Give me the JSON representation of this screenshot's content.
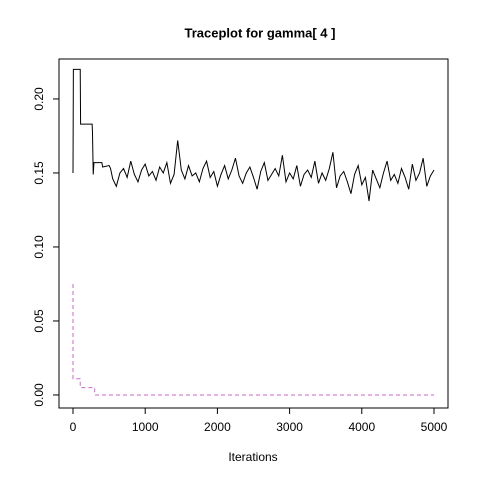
{
  "chart_data": {
    "type": "line",
    "title": "Traceplot for gamma[ 4 ]",
    "x_label": "Iterations",
    "xlim": [
      -194,
      5194
    ],
    "ylim": [
      -0.0088,
      0.227
    ],
    "xticks": [
      0,
      1000,
      2000,
      3000,
      4000,
      5000
    ],
    "yticks": [
      {
        "value": 0,
        "label": "0.00"
      },
      0.05,
      {
        "value": 0.1,
        "label": "0.10"
      },
      0.15,
      {
        "value": 0.2,
        "label": "0.20"
      }
    ],
    "series": [
      {
        "color": "#000000",
        "linestyle": "solid",
        "x": [
          0,
          5,
          100,
          105,
          265,
          270,
          280,
          290,
          400,
          410,
          500,
          520,
          550,
          600,
          650,
          700,
          750,
          800,
          850,
          900,
          950,
          1000,
          1050,
          1100,
          1150,
          1200,
          1250,
          1300,
          1350,
          1400,
          1450,
          1500,
          1550,
          1600,
          1650,
          1700,
          1750,
          1800,
          1850,
          1900,
          1950,
          2000,
          2050,
          2100,
          2150,
          2200,
          2250,
          2300,
          2350,
          2400,
          2450,
          2500,
          2550,
          2600,
          2650,
          2700,
          2750,
          2800,
          2850,
          2900,
          2950,
          3000,
          3050,
          3100,
          3150,
          3200,
          3250,
          3300,
          3350,
          3400,
          3450,
          3500,
          3550,
          3600,
          3650,
          3700,
          3750,
          3800,
          3850,
          3900,
          3950,
          4000,
          4050,
          4100,
          4150,
          4200,
          4250,
          4300,
          4350,
          4400,
          4450,
          4500,
          4550,
          4600,
          4650,
          4700,
          4750,
          4800,
          4850,
          4900,
          4950,
          5000
        ],
        "values": [
          0.15,
          0.22,
          0.22,
          0.183,
          0.183,
          0.177,
          0.149,
          0.157,
          0.157,
          0.154,
          0.155,
          0.153,
          0.146,
          0.141,
          0.15,
          0.153,
          0.147,
          0.158,
          0.149,
          0.144,
          0.152,
          0.156,
          0.148,
          0.151,
          0.145,
          0.154,
          0.15,
          0.157,
          0.143,
          0.149,
          0.172,
          0.152,
          0.146,
          0.155,
          0.148,
          0.15,
          0.144,
          0.153,
          0.158,
          0.147,
          0.151,
          0.141,
          0.149,
          0.155,
          0.146,
          0.152,
          0.16,
          0.148,
          0.143,
          0.15,
          0.154,
          0.147,
          0.139,
          0.151,
          0.157,
          0.145,
          0.149,
          0.153,
          0.148,
          0.162,
          0.144,
          0.15,
          0.146,
          0.155,
          0.141,
          0.149,
          0.152,
          0.147,
          0.158,
          0.143,
          0.15,
          0.145,
          0.153,
          0.164,
          0.14,
          0.148,
          0.151,
          0.144,
          0.136,
          0.149,
          0.155,
          0.142,
          0.147,
          0.131,
          0.152,
          0.146,
          0.14,
          0.15,
          0.158,
          0.145,
          0.149,
          0.143,
          0.153,
          0.147,
          0.139,
          0.156,
          0.145,
          0.15,
          0.16,
          0.141,
          0.148,
          0.152
        ]
      },
      {
        "color": "#cc66cc",
        "linestyle": "dashed",
        "x": [
          0,
          0,
          100,
          100,
          300,
          300,
          5000
        ],
        "values": [
          0.075,
          0.011,
          0.011,
          0.005,
          0.005,
          0,
          0
        ]
      }
    ]
  }
}
